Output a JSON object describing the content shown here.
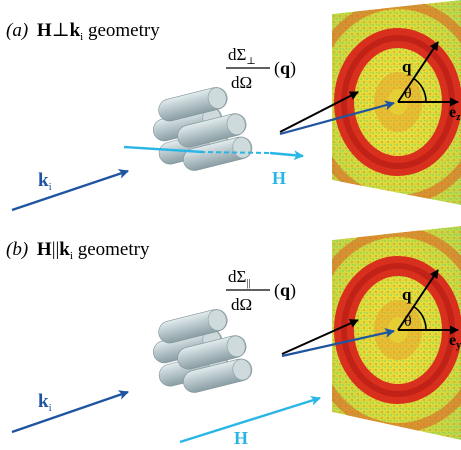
{
  "panels": [
    {
      "id": "a",
      "letter": "(a)",
      "field": "H",
      "relation": "⊥",
      "wave": "k",
      "wave_sub": "i",
      "suffix": " geometry",
      "cs_num": "dΣ",
      "cs_sub": "⊥",
      "cs_den": "dΩ",
      "cs_arg_l": "(",
      "cs_arg": "q",
      "cs_arg_r": ")",
      "q_label": "q",
      "theta_label": "θ",
      "ez_label": "e",
      "ez_sub": "z",
      "k_label": "k",
      "k_sub": "i",
      "h_label": "H"
    },
    {
      "id": "b",
      "letter": "(b)",
      "field": "H",
      "relation": "||",
      "wave": "k",
      "wave_sub": "i",
      "suffix": " geometry",
      "cs_num": "dΣ",
      "cs_sub": "||",
      "cs_den": "dΩ",
      "cs_arg_l": "(",
      "cs_arg": "q",
      "cs_arg_r": ")",
      "q_label": "q",
      "theta_label": "θ",
      "ez_label": "e",
      "ez_sub": "y",
      "k_label": "k",
      "k_sub": "i",
      "h_label": "H"
    }
  ],
  "colors": {
    "beam_blue": "#1f55a0",
    "field_cyan": "#29b6e6",
    "cylinder": "#b9c8cc",
    "ring_red": "#d9261c",
    "detector_yellow": "#e9e23a"
  }
}
